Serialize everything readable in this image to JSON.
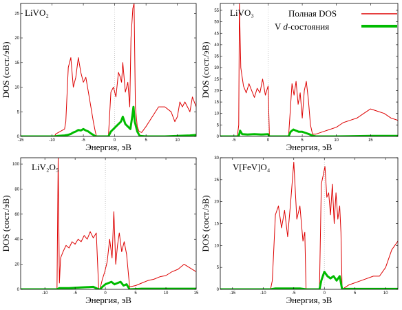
{
  "legend": {
    "total_label": "Полная DOS",
    "v_label_prefix": "V ",
    "v_label_italic": "d",
    "v_label_suffix": "-состояния"
  },
  "colors": {
    "total": "#dd0000",
    "v": "#00bb00",
    "zero_line": "#bbbbbb"
  },
  "chart_data": [
    {
      "type": "line",
      "title": "LiVO₂",
      "xlabel": "Энергия, эВ",
      "ylabel": "DOS (сост./эВ)",
      "xlim": [
        -15,
        13
      ],
      "ylim": [
        0,
        27
      ],
      "xticks": [
        -15,
        -10,
        -5,
        0,
        5,
        10
      ],
      "yticks": [
        0,
        5,
        10,
        15,
        20,
        25
      ],
      "series": [
        {
          "name": "Полная DOS",
          "x": [
            -15,
            -9.6,
            -9.4,
            -8,
            -7.8,
            -7.4,
            -7,
            -6.6,
            -6.2,
            -5.8,
            -5.4,
            -5,
            -4.6,
            -4.2,
            -3.8,
            -3.4,
            -3.1,
            -2.9,
            -1,
            -0.6,
            -0.2,
            0.2,
            0.6,
            0.9,
            1.1,
            1.3,
            1.7,
            2.1,
            2.4,
            2.6,
            2.9,
            3.1,
            3.3,
            3.6,
            3.9,
            4.3,
            5,
            6,
            7,
            8,
            9,
            9.6,
            10,
            10.4,
            10.8,
            11.2,
            11.6,
            12,
            12.4,
            13
          ],
          "values": [
            0,
            0,
            0.5,
            1.5,
            3,
            14,
            16,
            10,
            12,
            16,
            13,
            11,
            12,
            9,
            6,
            3,
            1,
            0,
            0,
            9,
            10,
            8,
            13,
            12,
            11,
            15,
            9,
            11,
            6,
            20,
            26,
            27,
            6,
            2,
            1,
            0.8,
            2,
            4,
            6,
            6,
            5,
            3,
            4,
            7,
            6,
            7,
            6,
            5,
            8,
            6
          ]
        },
        {
          "name": "V d-состояния",
          "x": [
            -15,
            -9.6,
            -9,
            -8,
            -7.5,
            -7,
            -6.6,
            -6.2,
            -5.8,
            -5.4,
            -5,
            -4.6,
            -4.2,
            -3.8,
            -3.4,
            -3,
            -1,
            -0.6,
            -0.2,
            0.2,
            0.6,
            1,
            1.3,
            1.7,
            2.1,
            2.5,
            2.8,
            3,
            3.2,
            3.6,
            4,
            5,
            8,
            10,
            12,
            13
          ],
          "values": [
            0,
            0,
            0.1,
            0.2,
            0.3,
            0.5,
            0.8,
            1,
            1.3,
            1.2,
            1.5,
            1.2,
            1,
            0.6,
            0.3,
            0,
            0,
            1,
            1.5,
            2,
            2.5,
            3,
            4,
            2.5,
            2,
            1.5,
            4,
            6,
            3,
            1,
            0.1,
            0,
            0,
            0.1,
            0.2,
            0.3
          ]
        }
      ]
    },
    {
      "type": "line",
      "title": "LiVO₃",
      "xlabel": "Энергия, эВ",
      "ylabel": "DOS (сост./эВ)",
      "xlim": [
        -7,
        19
      ],
      "ylim": [
        0,
        58
      ],
      "xticks": [
        -5,
        0,
        5,
        10,
        15
      ],
      "yticks": [
        0,
        5,
        10,
        15,
        20,
        25,
        30,
        35,
        40,
        45,
        50,
        55
      ],
      "series": [
        {
          "name": "Полная DOS",
          "x": [
            -7,
            -4.5,
            -4.3,
            -4.2,
            -4,
            -3.6,
            -3.2,
            -2.8,
            -2.4,
            -2,
            -1.6,
            -1.2,
            -0.8,
            -0.4,
            0,
            0.2,
            3,
            3.2,
            3.5,
            3.8,
            4.1,
            4.4,
            4.7,
            5,
            5.3,
            5.6,
            5.9,
            6.2,
            6.5,
            7,
            8,
            9,
            10,
            11,
            12,
            13,
            14,
            15,
            16,
            17,
            18,
            19
          ],
          "values": [
            0,
            0,
            5,
            58,
            30,
            22,
            19,
            23,
            20,
            17,
            21,
            19,
            25,
            18,
            22,
            0,
            0,
            9,
            23,
            18,
            24,
            14,
            19,
            8,
            20,
            24,
            16,
            5,
            1,
            1,
            2,
            3,
            4,
            6,
            7,
            8,
            10,
            12,
            11,
            10,
            8,
            7
          ]
        },
        {
          "name": "V d-состояния",
          "x": [
            -7,
            -4.3,
            -4.1,
            -3.8,
            -3,
            -2,
            -1,
            0,
            0.2,
            3,
            3.3,
            3.7,
            4.1,
            4.5,
            5,
            5.5,
            6,
            6.5,
            7,
            10,
            15,
            19
          ],
          "values": [
            0,
            0,
            2.5,
            1,
            0.8,
            1,
            0.8,
            1,
            0,
            0,
            2,
            3,
            2.5,
            2,
            2,
            1.5,
            1,
            0.3,
            0,
            0,
            0.2,
            0.2
          ]
        }
      ]
    },
    {
      "type": "line",
      "title": "LiV₂O₅",
      "xlabel": "Энергия, эВ",
      "ylabel": "DOS (сост./эВ)",
      "xlim": [
        -14,
        15
      ],
      "ylim": [
        0,
        105
      ],
      "xticks": [
        -10,
        -5,
        0,
        5,
        10,
        15
      ],
      "yticks": [
        0,
        20,
        40,
        60,
        80,
        100
      ],
      "series": [
        {
          "name": "Полная DOS",
          "x": [
            -14,
            -8,
            -7.8,
            -7.6,
            -7.4,
            -7,
            -6.5,
            -6,
            -5.5,
            -5,
            -4.5,
            -4,
            -3.5,
            -3,
            -2.5,
            -2,
            -1.5,
            -1.1,
            -0.9,
            -0.5,
            -0.1,
            0.3,
            0.7,
            1.1,
            1.4,
            1.7,
            2,
            2.3,
            2.7,
            3.1,
            3.5,
            4,
            5,
            6,
            7,
            8,
            9,
            10,
            11,
            12,
            13,
            14,
            15
          ],
          "values": [
            0,
            0,
            105,
            5,
            25,
            30,
            35,
            33,
            38,
            36,
            40,
            38,
            43,
            40,
            46,
            41,
            45,
            0,
            0,
            8,
            14,
            22,
            40,
            25,
            62,
            20,
            35,
            45,
            30,
            38,
            28,
            2,
            3,
            5,
            7,
            8,
            10,
            11,
            14,
            16,
            20,
            17,
            14
          ]
        },
        {
          "name": "V d-состояния",
          "x": [
            -14,
            -8,
            -7.6,
            -6,
            -4,
            -2,
            -1.1,
            -0.9,
            -0.5,
            0,
            0.5,
            1,
            1.5,
            2,
            2.5,
            3,
            3.5,
            4,
            6,
            10,
            15
          ],
          "values": [
            0,
            0,
            1,
            1,
            1.5,
            2,
            0,
            0,
            2,
            4,
            5,
            6,
            4,
            5,
            6,
            3,
            4,
            0,
            0.5,
            0.5,
            0.5
          ]
        }
      ]
    },
    {
      "type": "line",
      "title": "V[FeV]O₄",
      "xlabel": "Энергия, эВ",
      "ylabel": "DOS (сост./эВ)",
      "xlim": [
        -17,
        12
      ],
      "ylim": [
        0,
        30
      ],
      "xticks": [
        -15,
        -10,
        -5,
        0,
        5,
        10
      ],
      "yticks": [
        0,
        5,
        10,
        15,
        20,
        25,
        30
      ],
      "series": [
        {
          "name": "Полная DOS",
          "x": [
            -17,
            -8.8,
            -8.5,
            -8,
            -7.5,
            -7,
            -6.5,
            -6,
            -5.5,
            -5,
            -4.5,
            -4,
            -3.5,
            -3.2,
            -3,
            -0.8,
            -0.5,
            -0.2,
            0.1,
            0.4,
            0.7,
            1,
            1.3,
            1.6,
            1.9,
            2.2,
            2.5,
            2.7,
            2.9,
            4,
            6,
            8,
            9,
            10,
            11,
            12
          ],
          "values": [
            0,
            0,
            2,
            17,
            19,
            14,
            18,
            12,
            20,
            29,
            16,
            19,
            11,
            13,
            0,
            0,
            24,
            26,
            28,
            21,
            22,
            17,
            24,
            15,
            22,
            16,
            19,
            13,
            0,
            1,
            2,
            3,
            3,
            5,
            9,
            11
          ]
        },
        {
          "name": "V d-состояния",
          "x": [
            -17,
            -8.8,
            -8,
            -6,
            -4,
            -3,
            -0.8,
            -0.5,
            0,
            0.5,
            1,
            1.5,
            2,
            2.5,
            2.9,
            3.5,
            6,
            12
          ],
          "values": [
            0,
            0,
            0.2,
            0.2,
            0.2,
            0,
            0,
            2,
            4,
            3,
            2.5,
            3,
            2,
            3,
            0,
            0.1,
            0.1,
            0.1
          ]
        }
      ]
    }
  ]
}
